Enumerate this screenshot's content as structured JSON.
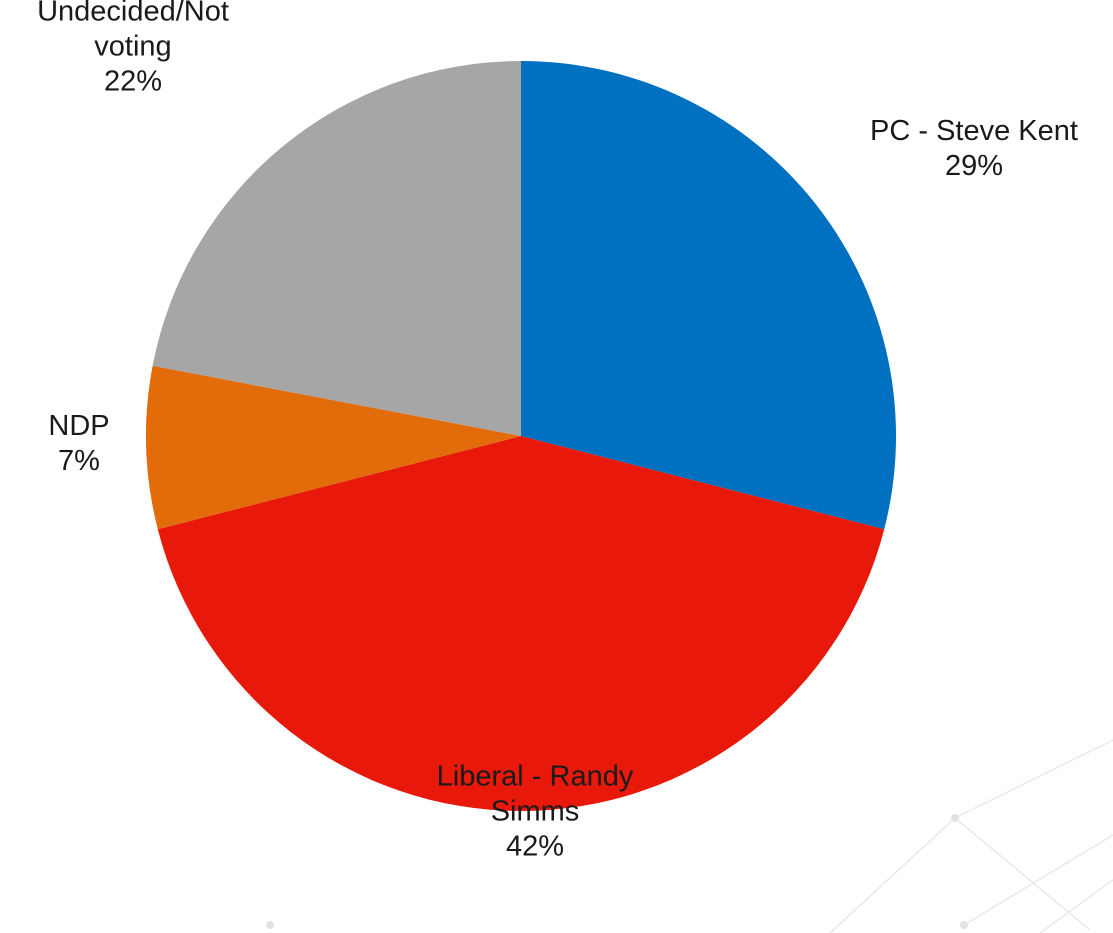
{
  "chart_data": {
    "type": "pie",
    "title": "",
    "slices": [
      {
        "label_lines": [
          "PC - Steve Kent"
        ],
        "value": 29,
        "value_label": "29%",
        "color": "#0070C0"
      },
      {
        "label_lines": [
          "Liberal - Randy",
          "Simms"
        ],
        "value": 42,
        "value_label": "42%",
        "color": "#E8180A"
      },
      {
        "label_lines": [
          "NDP"
        ],
        "value": 7,
        "value_label": "7%",
        "color": "#E36C0A"
      },
      {
        "label_lines": [
          "Undecided/Not",
          "voting"
        ],
        "value": 22,
        "value_label": "22%",
        "color": "#A6A6A6"
      }
    ],
    "start": "12 o'clock",
    "direction": "clockwise",
    "legend": "none",
    "data_labels": "outside"
  }
}
